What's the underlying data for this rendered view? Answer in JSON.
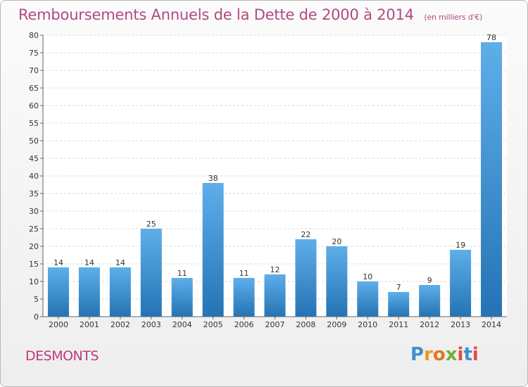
{
  "header": {
    "title": "Remboursements Annuels de la Dette de 2000 à 2014",
    "unit": "(en milliers d'€)"
  },
  "footer": {
    "commune": "DESMONTS",
    "brand_parts": [
      "P",
      "r",
      "o",
      "x",
      "i",
      "t",
      "i"
    ]
  },
  "colors": {
    "bar_top": "#5eaeea",
    "bar_bottom": "#2474b5",
    "title": "#b14a82",
    "commune": "#c0397a"
  },
  "chart_data": {
    "type": "bar",
    "categories": [
      "2000",
      "2001",
      "2002",
      "2003",
      "2004",
      "2005",
      "2006",
      "2007",
      "2008",
      "2009",
      "2010",
      "2011",
      "2012",
      "2013",
      "2014"
    ],
    "values": [
      14,
      14,
      14,
      25,
      11,
      38,
      11,
      12,
      22,
      20,
      10,
      7,
      9,
      19,
      78
    ],
    "title": "Remboursements Annuels de la Dette de 2000 à 2014",
    "xlabel": "",
    "ylabel": "",
    "ylim": [
      0,
      80
    ],
    "yticks": [
      0,
      5,
      10,
      15,
      20,
      25,
      30,
      35,
      40,
      45,
      50,
      55,
      60,
      65,
      70,
      75,
      80
    ],
    "grid": true,
    "data_labels": true
  }
}
